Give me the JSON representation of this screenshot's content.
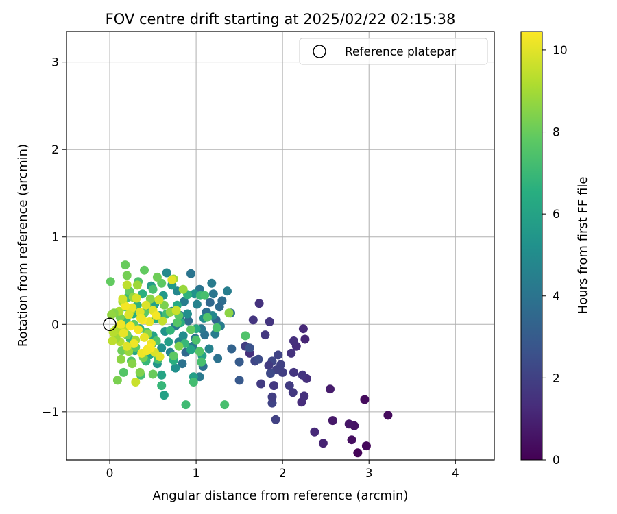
{
  "chart_data": {
    "type": "scatter",
    "title": "FOV centre drift starting at 2025/02/22 02:15:38",
    "xlabel": "Angular distance from reference (arcmin)",
    "ylabel": "Rotation from reference (arcmin)",
    "xlim": [
      -0.5,
      4.45
    ],
    "ylim": [
      -1.55,
      3.35
    ],
    "xticks": [
      0,
      1,
      2,
      3,
      4
    ],
    "yticks": [
      -1,
      0,
      1,
      2,
      3
    ],
    "xtick_labels": [
      "0",
      "1",
      "2",
      "3",
      "4"
    ],
    "ytick_labels": [
      "−1",
      "0",
      "1",
      "2",
      "3"
    ],
    "grid": true,
    "legend_placement": "top-right",
    "reference_marker": {
      "label": "Reference platepar",
      "x": 0,
      "y": 0,
      "marker": "open-circle"
    },
    "colorbar": {
      "label": "Hours from first FF file",
      "colormap": "viridis",
      "range": [
        0,
        10.45
      ],
      "ticks": [
        0,
        2,
        4,
        6,
        8,
        10
      ],
      "tick_labels": [
        "0",
        "2",
        "4",
        "6",
        "8",
        "10"
      ]
    },
    "points": [
      [
        2.87,
        -1.47,
        0.1
      ],
      [
        2.97,
        -1.39,
        0.2
      ],
      [
        3.22,
        -1.04,
        0.3
      ],
      [
        2.95,
        -0.86,
        0.3
      ],
      [
        2.8,
        -1.32,
        0.4
      ],
      [
        2.83,
        -1.16,
        0.5
      ],
      [
        2.77,
        -1.14,
        0.6
      ],
      [
        2.58,
        -1.1,
        0.7
      ],
      [
        2.55,
        -0.74,
        0.8
      ],
      [
        2.47,
        -1.36,
        1.0
      ],
      [
        2.37,
        -1.23,
        1.2
      ],
      [
        2.22,
        -0.89,
        1.3
      ],
      [
        2.28,
        -0.62,
        1.4
      ],
      [
        2.25,
        -0.82,
        1.5
      ],
      [
        2.23,
        -0.58,
        1.6
      ],
      [
        2.26,
        -0.17,
        1.1
      ],
      [
        2.24,
        -0.05,
        1.2
      ],
      [
        2.16,
        -0.25,
        1.3
      ],
      [
        2.13,
        -0.19,
        1.4
      ],
      [
        2.1,
        -0.33,
        1.5
      ],
      [
        2.13,
        -0.55,
        1.6
      ],
      [
        2.12,
        -0.78,
        1.7
      ],
      [
        2.08,
        -0.7,
        1.8
      ],
      [
        2.0,
        -0.55,
        1.9
      ],
      [
        1.98,
        -0.46,
        2.0
      ],
      [
        1.95,
        -0.35,
        2.1
      ],
      [
        1.93,
        -0.52,
        2.0
      ],
      [
        1.88,
        -0.42,
        2.2
      ],
      [
        1.86,
        -0.56,
        2.3
      ],
      [
        1.88,
        -0.9,
        2.1
      ],
      [
        1.88,
        -0.83,
        1.9
      ],
      [
        1.92,
        -1.09,
        2.0
      ],
      [
        1.9,
        -0.7,
        1.7
      ],
      [
        1.84,
        -0.47,
        1.8
      ],
      [
        1.8,
        -0.12,
        1.7
      ],
      [
        1.85,
        0.03,
        1.6
      ],
      [
        1.73,
        0.24,
        1.5
      ],
      [
        1.66,
        0.05,
        1.6
      ],
      [
        1.75,
        -0.68,
        1.8
      ],
      [
        1.62,
        -0.33,
        1.4
      ],
      [
        1.57,
        -0.25,
        1.9
      ],
      [
        1.68,
        -0.42,
        2.2
      ],
      [
        1.72,
        -0.4,
        2.4
      ],
      [
        1.62,
        -0.27,
        2.6
      ],
      [
        1.5,
        -0.64,
        2.9
      ],
      [
        1.5,
        -0.43,
        3.0
      ],
      [
        1.41,
        -0.28,
        3.3
      ],
      [
        1.4,
        0.13,
        3.9
      ],
      [
        1.36,
        0.38,
        4.4
      ],
      [
        1.3,
        0.27,
        3.7
      ],
      [
        1.27,
        0.2,
        3.6
      ],
      [
        1.25,
        -0.39,
        3.9
      ],
      [
        1.23,
        0.05,
        3.4
      ],
      [
        1.2,
        0.35,
        4.1
      ],
      [
        1.18,
        0.47,
        4.3
      ],
      [
        1.16,
        0.25,
        3.5
      ],
      [
        1.12,
        0.14,
        3.8
      ],
      [
        1.1,
        -0.12,
        3.9
      ],
      [
        1.06,
        -0.05,
        4.2
      ],
      [
        1.04,
        0.4,
        4.0
      ],
      [
        1.01,
        0.23,
        4.6
      ],
      [
        0.99,
        -0.16,
        4.1
      ],
      [
        0.96,
        -0.25,
        4.3
      ],
      [
        0.94,
        0.58,
        4.0
      ],
      [
        0.91,
        0.04,
        3.7
      ],
      [
        0.88,
        -0.32,
        3.5
      ],
      [
        0.86,
        0.26,
        4.4
      ],
      [
        0.84,
        -0.45,
        3.9
      ],
      [
        0.82,
        0.1,
        4.1
      ],
      [
        0.8,
        -0.2,
        4.5
      ],
      [
        0.78,
        0.38,
        4.8
      ],
      [
        0.76,
        -0.02,
        4.2
      ],
      [
        0.72,
        0.15,
        4.9
      ],
      [
        0.7,
        -0.32,
        4.7
      ],
      [
        0.66,
        0.59,
        4.9
      ],
      [
        0.64,
        -0.08,
        5.3
      ],
      [
        0.62,
        0.33,
        5.6
      ],
      [
        0.6,
        -0.27,
        5.2
      ],
      [
        0.58,
        0.1,
        5.8
      ],
      [
        0.55,
        -0.45,
        5.4
      ],
      [
        0.52,
        0.23,
        5.9
      ],
      [
        0.5,
        -0.13,
        6.0
      ],
      [
        0.48,
        0.44,
        5.7
      ],
      [
        0.46,
        -0.35,
        6.1
      ],
      [
        1.04,
        -0.6,
        4.2
      ],
      [
        1.08,
        -0.48,
        3.8
      ],
      [
        1.15,
        -0.28,
        4.6
      ],
      [
        1.22,
        -0.11,
        4.4
      ],
      [
        1.28,
        -0.02,
        4.3
      ],
      [
        1.19,
        0.1,
        4.8
      ],
      [
        1.09,
        0.07,
        5.0
      ],
      [
        0.98,
        0.35,
        5.3
      ],
      [
        0.9,
        0.12,
        5.1
      ],
      [
        0.85,
        -0.13,
        5.0
      ],
      [
        0.76,
        -0.5,
        5.2
      ],
      [
        0.72,
        0.45,
        5.6
      ],
      [
        0.68,
        -0.2,
        5.8
      ],
      [
        0.63,
        -0.81,
        5.9
      ],
      [
        0.6,
        -0.58,
        6.1
      ],
      [
        0.57,
        0.28,
        6.3
      ],
      [
        0.53,
        0.06,
        6.5
      ],
      [
        0.49,
        -0.22,
        6.7
      ],
      [
        0.45,
        0.18,
        6.8
      ],
      [
        0.42,
        -0.42,
        6.9
      ],
      [
        0.38,
        0.35,
        6.6
      ],
      [
        0.35,
        -0.05,
        6.5
      ],
      [
        0.32,
        0.22,
        6.7
      ],
      [
        0.29,
        -0.3,
        6.2
      ],
      [
        0.27,
        0.12,
        6.4
      ],
      [
        0.24,
        -0.17,
        6.8
      ],
      [
        0.21,
        0.31,
        7.1
      ],
      [
        0.19,
        0.05,
        7.0
      ],
      [
        1.07,
        -0.36,
        6.0
      ],
      [
        1.0,
        -0.05,
        6.3
      ],
      [
        0.94,
        -0.29,
        6.1
      ],
      [
        0.97,
        -0.6,
        5.8
      ],
      [
        0.9,
        0.34,
        6.7
      ],
      [
        0.87,
        -0.22,
        6.9
      ],
      [
        0.82,
        0.02,
        6.6
      ],
      [
        0.78,
        0.22,
        6.3
      ],
      [
        0.74,
        -0.41,
        6.5
      ],
      [
        0.7,
        -0.07,
        6.8
      ],
      [
        0.66,
        0.12,
        7.1
      ],
      [
        0.6,
        -0.7,
        6.9
      ],
      [
        0.56,
        -0.4,
        7.2
      ],
      [
        0.54,
        -0.19,
        7.5
      ],
      [
        0.5,
        0.4,
        7.3
      ],
      [
        0.43,
        -0.09,
        7.6
      ],
      [
        0.4,
        0.13,
        7.8
      ],
      [
        0.36,
        -0.58,
        7.2
      ],
      [
        0.33,
        0.49,
        7.5
      ],
      [
        0.3,
        -0.26,
        7.7
      ],
      [
        0.28,
        0.0,
        7.9
      ],
      [
        0.25,
        -0.42,
        7.6
      ],
      [
        0.23,
        0.38,
        7.9
      ],
      [
        0.2,
        -0.12,
        8.0
      ],
      [
        0.18,
        0.2,
        7.8
      ],
      [
        0.16,
        -0.55,
        7.6
      ],
      [
        0.14,
        -0.3,
        8.1
      ],
      [
        0.12,
        0.08,
        8.2
      ],
      [
        1.05,
        0.33,
        7.0
      ],
      [
        1.1,
        0.33,
        7.3
      ],
      [
        1.13,
        0.08,
        7.5
      ],
      [
        1.24,
        -0.04,
        7.4
      ],
      [
        1.06,
        -0.43,
        7.3
      ],
      [
        1.04,
        -0.31,
        7.6
      ],
      [
        1.0,
        -0.18,
        7.4
      ],
      [
        0.97,
        -0.66,
        7.2
      ],
      [
        0.94,
        -0.06,
        7.9
      ],
      [
        0.8,
        0.1,
        7.7
      ],
      [
        0.78,
        0.02,
        7.6
      ],
      [
        0.74,
        -0.36,
        7.8
      ],
      [
        0.88,
        -0.92,
        7.1
      ],
      [
        1.33,
        -0.92,
        7.3
      ],
      [
        1.57,
        -0.13,
        7.5
      ],
      [
        1.38,
        0.13,
        8.6
      ],
      [
        0.85,
        0.4,
        8.8
      ],
      [
        0.8,
        -0.25,
        8.4
      ],
      [
        0.74,
        0.52,
        8.9
      ],
      [
        0.7,
        0.14,
        8.7
      ],
      [
        0.63,
        0.22,
        8.3
      ],
      [
        0.6,
        0.47,
        7.8
      ],
      [
        0.55,
        0.54,
        8.1
      ],
      [
        0.5,
        -0.57,
        8.0
      ],
      [
        0.47,
        0.29,
        8.5
      ],
      [
        0.44,
        -0.11,
        8.6
      ],
      [
        0.4,
        0.62,
        7.9
      ],
      [
        0.39,
        -0.38,
        8.2
      ],
      [
        0.36,
        0.08,
        8.8
      ],
      [
        0.35,
        -0.55,
        8.4
      ],
      [
        0.32,
        0.45,
        8.9
      ],
      [
        0.3,
        -0.18,
        9.0
      ],
      [
        0.27,
        0.31,
        8.7
      ],
      [
        0.26,
        -0.45,
        8.5
      ],
      [
        0.24,
        0.15,
        9.1
      ],
      [
        0.22,
        -0.31,
        8.8
      ],
      [
        0.2,
        0.56,
        8.2
      ],
      [
        0.18,
        0.68,
        8.0
      ],
      [
        0.17,
        -0.05,
        9.2
      ],
      [
        0.15,
        0.26,
        9.0
      ],
      [
        0.13,
        -0.4,
        8.6
      ],
      [
        0.12,
        -0.2,
        9.3
      ],
      [
        0.11,
        0.15,
        9.1
      ],
      [
        0.1,
        -0.1,
        9.4
      ],
      [
        0.09,
        -0.64,
        8.3
      ],
      [
        0.08,
        -0.05,
        9.2
      ],
      [
        0.07,
        -0.16,
        8.9
      ],
      [
        0.05,
        0.13,
        8.5
      ],
      [
        0.03,
        -0.19,
        9.4
      ],
      [
        0.01,
        0.49,
        7.9
      ],
      [
        0.02,
        0.11,
        8.7
      ],
      [
        0.04,
        -0.09,
        9.3
      ],
      [
        0.61,
        0.04,
        9.5
      ],
      [
        0.57,
        0.28,
        9.7
      ],
      [
        0.52,
        -0.32,
        9.9
      ],
      [
        0.5,
        0.16,
        10.0
      ],
      [
        0.48,
        -0.22,
        10.2
      ],
      [
        0.46,
        0.03,
        10.1
      ],
      [
        0.44,
        -0.28,
        10.3
      ],
      [
        0.42,
        0.22,
        9.9
      ],
      [
        0.4,
        -0.15,
        10.1
      ],
      [
        0.38,
        0.05,
        10.4
      ],
      [
        0.37,
        -0.33,
        10.2
      ],
      [
        0.35,
        0.14,
        10.0
      ],
      [
        0.33,
        -0.06,
        10.3
      ],
      [
        0.31,
        0.3,
        9.8
      ],
      [
        0.3,
        -0.66,
        9.6
      ],
      [
        0.28,
        -0.22,
        10.2
      ],
      [
        0.26,
        0.19,
        10.1
      ],
      [
        0.24,
        -0.02,
        10.4
      ],
      [
        0.22,
        0.11,
        9.9
      ],
      [
        0.2,
        -0.25,
        10.0
      ],
      [
        0.18,
        0.21,
        10.3
      ],
      [
        0.16,
        -0.1,
        10.1
      ],
      [
        0.15,
        0.29,
        9.7
      ],
      [
        0.13,
        0.0,
        10.2
      ],
      [
        0.72,
        0.51,
        10.0
      ],
      [
        0.77,
        0.16,
        9.6
      ],
      [
        0.54,
        0.1,
        10.3
      ],
      [
        0.58,
        -0.37,
        10.0
      ],
      [
        0.47,
        -0.27,
        10.4
      ],
      [
        0.43,
        -0.3,
        10.3
      ],
      [
        0.36,
        0.07,
        10.2
      ],
      [
        0.2,
        0.45,
        9.4
      ]
    ]
  }
}
